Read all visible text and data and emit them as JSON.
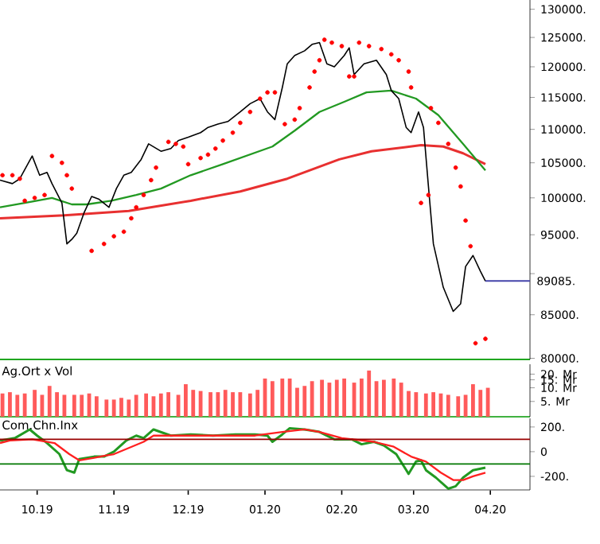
{
  "chart_data": [
    {
      "type": "line",
      "log": "y",
      "tick_labels": "y",
      "xlim": [
        "2019-09-16",
        "2020-04-17"
      ],
      "ylim": [
        79900,
        131700
      ],
      "yticks": [
        {
          "value": 80000,
          "label": "80000."
        },
        {
          "value": 85000,
          "label": "85000."
        },
        {
          "value": 90000,
          "label": null
        },
        {
          "value": 95000,
          "label": "95000."
        },
        {
          "value": 100000,
          "label": "100000."
        },
        {
          "value": 105000,
          "label": "105000."
        },
        {
          "value": 110000,
          "label": "110000."
        },
        {
          "value": 115000,
          "label": "115000."
        },
        {
          "value": 120000,
          "label": "120000."
        },
        {
          "value": 125000,
          "label": "125000."
        },
        {
          "value": 130000,
          "label": "130000."
        }
      ],
      "ref_lines": [
        {
          "axis": "y",
          "value": 89085,
          "label": "89085.",
          "color": "#4444aa"
        }
      ],
      "series": [
        {
          "type": "line",
          "color": "#e83030",
          "x": [
            "2019-09-16",
            "2019-10-12",
            "2019-11-07",
            "2019-12-02",
            "2019-12-22",
            "2020-01-10",
            "2020-01-31",
            "2020-02-13",
            "2020-03-04",
            "2020-03-13",
            "2020-03-21",
            "2020-03-30"
          ],
          "values": [
            97200,
            97600,
            98200,
            99600,
            100900,
            102700,
            105500,
            106700,
            107600,
            107400,
            106400,
            104800
          ]
        },
        {
          "type": "line",
          "color": "#229922",
          "x": [
            "2019-09-16",
            "2019-09-26",
            "2019-10-07",
            "2019-10-15",
            "2019-10-21",
            "2019-10-31",
            "2019-11-10",
            "2019-11-20",
            "2019-12-02",
            "2019-12-15",
            "2020-01-04",
            "2020-01-13",
            "2020-01-23",
            "2020-02-02",
            "2020-02-11",
            "2020-02-21",
            "2020-03-02",
            "2020-03-11",
            "2020-03-21",
            "2020-03-30"
          ],
          "values": [
            98700,
            99300,
            100000,
            99100,
            99100,
            99600,
            100400,
            101300,
            103200,
            104800,
            107400,
            109800,
            112700,
            114300,
            115800,
            116100,
            114800,
            112200,
            107800,
            103900
          ]
        },
        {
          "type": "line",
          "color": "#000000",
          "x": [
            "2019-09-16",
            "2019-09-21",
            "2019-09-24",
            "2019-09-29",
            "2019-10-02",
            "2019-10-05",
            "2019-10-07",
            "2019-10-11",
            "2019-10-13",
            "2019-10-15",
            "2019-10-17",
            "2019-10-20",
            "2019-10-23",
            "2019-10-26",
            "2019-10-30",
            "2019-11-02",
            "2019-11-05",
            "2019-11-08",
            "2019-11-12",
            "2019-11-15",
            "2019-11-20",
            "2019-11-24",
            "2019-11-27",
            "2019-12-01",
            "2019-12-06",
            "2019-12-09",
            "2019-12-13",
            "2019-12-17",
            "2019-12-22",
            "2019-12-26",
            "2019-12-30",
            "2020-01-02",
            "2020-01-05",
            "2020-01-08",
            "2020-01-10",
            "2020-01-13",
            "2020-01-17",
            "2020-01-20",
            "2020-01-23",
            "2020-01-26",
            "2020-01-29",
            "2020-02-02",
            "2020-02-04",
            "2020-02-06",
            "2020-02-10",
            "2020-02-15",
            "2020-02-19",
            "2020-02-21",
            "2020-02-24",
            "2020-02-27",
            "2020-02-29",
            "2020-03-03",
            "2020-03-05",
            "2020-03-07",
            "2020-03-09",
            "2020-03-13",
            "2020-03-17",
            "2020-03-20",
            "2020-03-22",
            "2020-03-25",
            "2020-03-28",
            "2020-03-30"
          ],
          "values": [
            102500,
            102000,
            102700,
            106000,
            103200,
            103600,
            102000,
            99300,
            93800,
            94400,
            95200,
            98000,
            100200,
            99800,
            98700,
            101300,
            103200,
            103600,
            105500,
            107800,
            106700,
            107100,
            108300,
            108800,
            109500,
            110300,
            110800,
            111200,
            112700,
            114000,
            114800,
            112700,
            111500,
            116600,
            120500,
            121900,
            122700,
            123800,
            124100,
            120500,
            120000,
            121900,
            123200,
            118700,
            120500,
            121100,
            118700,
            116100,
            114800,
            110300,
            109500,
            112700,
            110300,
            101600,
            93800,
            88300,
            85400,
            86300,
            90900,
            92300,
            90300,
            89085
          ]
        },
        {
          "type": "scatter",
          "color": "#ff0000",
          "x": [
            "2019-09-17",
            "2019-09-21",
            "2019-09-24",
            "2019-09-26",
            "2019-09-30",
            "2019-10-04",
            "2019-10-07",
            "2019-10-11",
            "2019-10-13",
            "2019-10-15",
            "2019-10-23",
            "2019-10-28",
            "2019-11-01",
            "2019-11-05",
            "2019-11-08",
            "2019-11-10",
            "2019-11-13",
            "2019-11-16",
            "2019-11-18",
            "2019-11-23",
            "2019-11-26",
            "2019-11-29",
            "2019-12-01",
            "2019-12-06",
            "2019-12-09",
            "2019-12-12",
            "2019-12-15",
            "2019-12-19",
            "2019-12-22",
            "2019-12-26",
            "2019-12-30",
            "2020-01-02",
            "2020-01-05",
            "2020-01-09",
            "2020-01-13",
            "2020-01-15",
            "2020-01-19",
            "2020-01-21",
            "2020-01-23",
            "2020-01-25",
            "2020-01-28",
            "2020-02-01",
            "2020-02-04",
            "2020-02-06",
            "2020-02-08",
            "2020-02-12",
            "2020-02-17",
            "2020-02-21",
            "2020-02-24",
            "2020-02-28",
            "2020-02-29",
            "2020-03-04",
            "2020-03-07",
            "2020-03-08",
            "2020-03-11",
            "2020-03-15",
            "2020-03-18",
            "2020-03-20",
            "2020-03-22",
            "2020-03-24",
            "2020-03-26",
            "2020-03-30"
          ],
          "values": [
            103200,
            103200,
            102700,
            99600,
            100000,
            100400,
            106000,
            105000,
            103200,
            101300,
            92900,
            93800,
            94800,
            95400,
            97200,
            98700,
            100400,
            102500,
            104300,
            108100,
            107800,
            107400,
            104800,
            105700,
            106200,
            107100,
            108300,
            109500,
            111000,
            112700,
            114800,
            115800,
            115800,
            110800,
            111500,
            113300,
            116600,
            119200,
            121100,
            124600,
            124100,
            123500,
            118400,
            118400,
            124100,
            123500,
            123000,
            122100,
            121100,
            119200,
            116600,
            99300,
            100400,
            113300,
            111000,
            107800,
            104300,
            101600,
            96900,
            93500,
            81700,
            82200
          ]
        }
      ]
    },
    {
      "type": "bar",
      "log": "y",
      "tick_labels": "y",
      "xlim": [
        "2019-09-16",
        "2020-04-17"
      ],
      "ylim": [
        2.3,
        33
      ],
      "color": "#ff5a5a",
      "annotations": [
        "Ag.Ort x Vol"
      ],
      "yticks": [
        {
          "value": 5,
          "label": "5. Mr"
        },
        {
          "value": 10,
          "label": "10. Mr"
        },
        {
          "value": 15,
          "label": "15. Mr"
        },
        {
          "value": 20,
          "label": "20. Mr"
        }
      ],
      "x": [
        "2019-09-17",
        "2019-09-20",
        "2019-09-23",
        "2019-09-26",
        "2019-09-30",
        "2019-10-03",
        "2019-10-06",
        "2019-10-09",
        "2019-10-12",
        "2019-10-16",
        "2019-10-19",
        "2019-10-22",
        "2019-10-25",
        "2019-10-29",
        "2019-11-01",
        "2019-11-04",
        "2019-11-07",
        "2019-11-10",
        "2019-11-14",
        "2019-11-17",
        "2019-11-20",
        "2019-11-23",
        "2019-11-27",
        "2019-11-30",
        "2019-12-03",
        "2019-12-06",
        "2019-12-10",
        "2019-12-13",
        "2019-12-16",
        "2019-12-19",
        "2019-12-22",
        "2019-12-26",
        "2019-12-29",
        "2020-01-01",
        "2020-01-04",
        "2020-01-08",
        "2020-01-11",
        "2020-01-14",
        "2020-01-17",
        "2020-01-20",
        "2020-01-24",
        "2020-01-27",
        "2020-01-30",
        "2020-02-02",
        "2020-02-06",
        "2020-02-09",
        "2020-02-12",
        "2020-02-15",
        "2020-02-18",
        "2020-02-22",
        "2020-02-25",
        "2020-02-28",
        "2020-03-02",
        "2020-03-06",
        "2020-03-09",
        "2020-03-12",
        "2020-03-15",
        "2020-03-19",
        "2020-03-22",
        "2020-03-25",
        "2020-03-28",
        "2020-03-31"
      ],
      "values": [
        7.5,
        8,
        7,
        7.5,
        9,
        7,
        11,
        8,
        7,
        7,
        7,
        7.5,
        6.5,
        5.5,
        5.5,
        6,
        5.5,
        7,
        7.5,
        6.5,
        7.5,
        8,
        7,
        12,
        9,
        8.5,
        8,
        8,
        9,
        8,
        8,
        7.5,
        9,
        16,
        14,
        16,
        16,
        10,
        11,
        14,
        15,
        13,
        15,
        16,
        13,
        16,
        24,
        14,
        15,
        16,
        13,
        8.5,
        8,
        7.5,
        8,
        7.5,
        7,
        6.5,
        7,
        12,
        9,
        10
      ]
    },
    {
      "type": "line",
      "xlim": [
        "2019-09-16",
        "2020-04-17"
      ],
      "ylim": [
        -310,
        270
      ],
      "annotations": [
        "Com.Chn.Inx"
      ],
      "xticks": [
        {
          "value": "2019-10-01",
          "label": "10.19"
        },
        {
          "value": "2019-11-01",
          "label": "11.19"
        },
        {
          "value": "2019-12-01",
          "label": "12.19"
        },
        {
          "value": "2020-01-01",
          "label": "01.20"
        },
        {
          "value": "2020-02-01",
          "label": "02.20"
        },
        {
          "value": "2020-03-01",
          "label": "03.20"
        },
        {
          "value": "2020-04-01",
          "label": "04.20"
        }
      ],
      "yticks": [
        {
          "value": 200,
          "label": "200."
        },
        0,
        {
          "value": -200,
          "label": "-200."
        }
      ],
      "ref_lines": [
        {
          "axis": "y",
          "value": 100,
          "color": "#990000"
        },
        {
          "axis": "y",
          "value": -100,
          "color": "#007700"
        }
      ],
      "series": [
        {
          "color": "#229922",
          "x": [
            "2019-09-16",
            "2019-09-22",
            "2019-09-28",
            "2019-10-01",
            "2019-10-05",
            "2019-10-10",
            "2019-10-13",
            "2019-10-16",
            "2019-10-18",
            "2019-10-24",
            "2019-10-28",
            "2019-11-01",
            "2019-11-06",
            "2019-11-10",
            "2019-11-13",
            "2019-11-17",
            "2019-11-24",
            "2019-12-02",
            "2019-12-11",
            "2019-12-20",
            "2019-12-28",
            "2020-01-02",
            "2020-01-04",
            "2020-01-08",
            "2020-01-11",
            "2020-01-17",
            "2020-01-23",
            "2020-01-29",
            "2020-02-05",
            "2020-02-09",
            "2020-02-14",
            "2020-02-18",
            "2020-02-23",
            "2020-02-28",
            "2020-03-02",
            "2020-03-04",
            "2020-03-06",
            "2020-03-10",
            "2020-03-15",
            "2020-03-18",
            "2020-03-21",
            "2020-03-25",
            "2020-03-30"
          ],
          "values": [
            90,
            110,
            180,
            130,
            70,
            -20,
            -150,
            -170,
            -60,
            -40,
            -40,
            0,
            90,
            130,
            110,
            180,
            130,
            140,
            130,
            140,
            140,
            130,
            80,
            140,
            190,
            180,
            160,
            100,
            100,
            60,
            80,
            50,
            -20,
            -180,
            -80,
            -70,
            -150,
            -210,
            -300,
            -280,
            -210,
            -150,
            -130
          ]
        },
        {
          "color": "#ff2020",
          "x": [
            "2019-09-16",
            "2019-09-20",
            "2019-09-29",
            "2019-10-08",
            "2019-10-14",
            "2019-10-18",
            "2019-10-24",
            "2019-10-29",
            "2019-11-01",
            "2019-11-07",
            "2019-11-13",
            "2019-11-17",
            "2019-11-24",
            "2019-12-11",
            "2019-12-28",
            "2020-01-08",
            "2020-01-17",
            "2020-01-23",
            "2020-02-01",
            "2020-02-14",
            "2020-02-22",
            "2020-02-29",
            "2020-03-06",
            "2020-03-12",
            "2020-03-17",
            "2020-03-21",
            "2020-03-25",
            "2020-03-30"
          ],
          "values": [
            70,
            90,
            100,
            70,
            -20,
            -70,
            -50,
            -30,
            -20,
            30,
            80,
            130,
            130,
            130,
            130,
            160,
            180,
            160,
            110,
            80,
            40,
            -40,
            -80,
            -170,
            -230,
            -230,
            -200,
            -170
          ]
        }
      ]
    }
  ]
}
